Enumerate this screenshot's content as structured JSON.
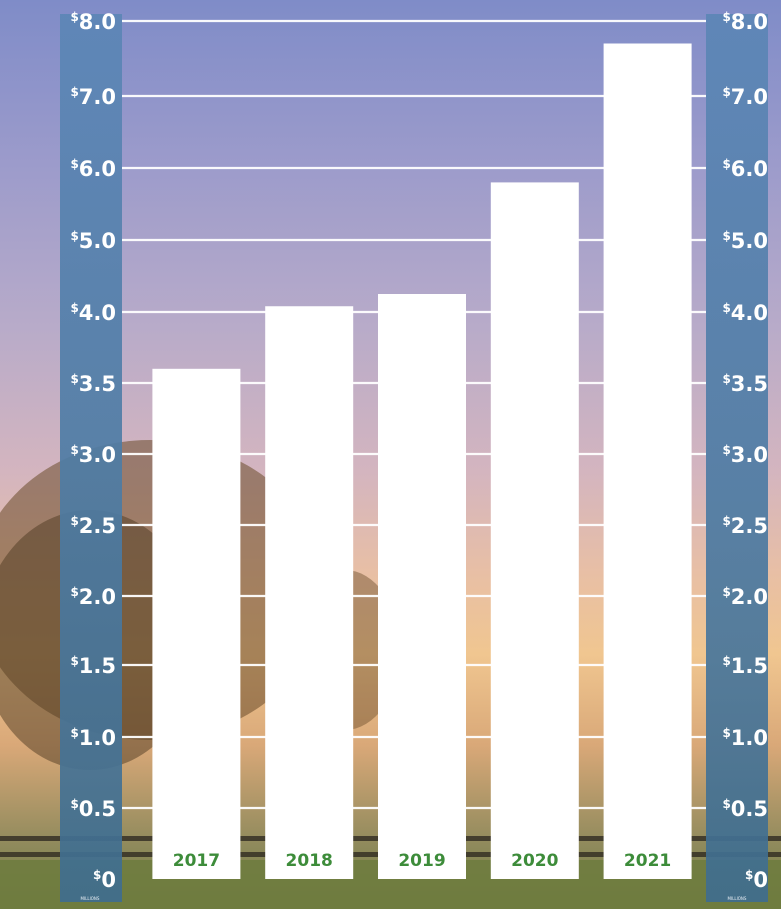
{
  "chart_data": {
    "type": "bar",
    "categories": [
      "2017",
      "2018",
      "2019",
      "2020",
      "2021"
    ],
    "values": [
      3.6,
      4.08,
      4.25,
      5.8,
      7.7
    ],
    "ylim": [
      0,
      8
    ],
    "y_axis_note": "axis scale is non-linear: $3.0 to $3.5 spans a larger step than other intervals",
    "y_ticks": [
      {
        "value": 0,
        "label": "0"
      },
      {
        "value": 0.5,
        "label": "0.5"
      },
      {
        "value": 1.0,
        "label": "1.0"
      },
      {
        "value": 1.5,
        "label": "1.5"
      },
      {
        "value": 2.0,
        "label": "2.0"
      },
      {
        "value": 2.5,
        "label": "2.5"
      },
      {
        "value": 3.0,
        "label": "3.0"
      },
      {
        "value": 3.5,
        "label": "3.5"
      },
      {
        "value": 4.0,
        "label": "4.0"
      },
      {
        "value": 5.0,
        "label": "5.0"
      },
      {
        "value": 6.0,
        "label": "6.0"
      },
      {
        "value": 7.0,
        "label": "7.0"
      },
      {
        "value": 8.0,
        "label": "8.0"
      }
    ],
    "currency_symbol": "$",
    "unit_label": "MILLIONS",
    "grid": true,
    "axes": "left and right",
    "colors": {
      "bar": "#ffffff",
      "category_label": "#3d8c3a",
      "axis_band": "#4f7ea5",
      "grid": "#ffffff"
    }
  }
}
